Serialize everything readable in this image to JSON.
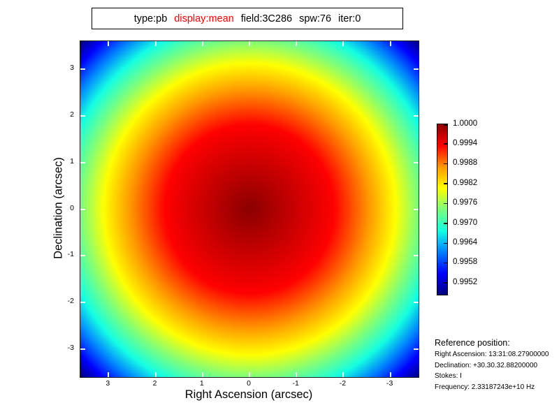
{
  "title": {
    "parts": [
      {
        "text": "type:pb",
        "color": "#000000"
      },
      {
        "text": "display:mean",
        "color": "#ff0000"
      },
      {
        "text": "field:3C286",
        "color": "#000000"
      },
      {
        "text": "spw:76",
        "color": "#000000"
      },
      {
        "text": "iter:0",
        "color": "#000000"
      }
    ]
  },
  "axes": {
    "x": {
      "label": "Right Ascension (arcsec)",
      "ticks": [
        3,
        2,
        1,
        0,
        -1,
        -2,
        -3
      ],
      "min": -3.6,
      "max": 3.6
    },
    "y": {
      "label": "Declination (arcsec)",
      "ticks": [
        3,
        2,
        1,
        0,
        -1,
        -2,
        -3
      ],
      "min": -3.6,
      "max": 3.6
    }
  },
  "colorbar": {
    "colormap": "jet",
    "vmax": 1.0,
    "vmin": 0.99485,
    "tick_labels": [
      "1.0000",
      "0.9994",
      "0.9988",
      "0.9982",
      "0.9976",
      "0.9970",
      "0.9964",
      "0.9958",
      "0.9952"
    ],
    "tick_values": [
      1.0,
      0.9994,
      0.9988,
      0.9982,
      0.9976,
      0.997,
      0.9964,
      0.9958,
      0.9952
    ],
    "stops": [
      {
        "j": 1.0,
        "color": "#8b0000"
      },
      {
        "j": 0.875,
        "color": "#ff0000"
      },
      {
        "j": 0.75,
        "color": "#ff9700"
      },
      {
        "j": 0.625,
        "color": "#ffff00"
      },
      {
        "j": 0.5,
        "color": "#7cff7c"
      },
      {
        "j": 0.375,
        "color": "#14ffe2"
      },
      {
        "j": 0.25,
        "color": "#0080ff"
      },
      {
        "j": 0.125,
        "color": "#0000ff"
      },
      {
        "j": 0.0,
        "color": "#000080"
      }
    ]
  },
  "reference": {
    "heading": "Reference position:",
    "lines": [
      "Right Ascension: 13:31:08.27900000",
      "Declination: +30.30.32.88200000",
      "Stokes: I",
      "Frequency: 2.33187243e+10 Hz"
    ]
  },
  "chart_data": {
    "type": "heatmap",
    "title": "type:pb display:mean field:3C286 spw:76 iter:0",
    "xlabel": "Right Ascension (arcsec)",
    "ylabel": "Declination (arcsec)",
    "x_ticks": [
      3,
      2,
      1,
      0,
      -1,
      -2,
      -3
    ],
    "y_ticks": [
      3,
      2,
      1,
      0,
      -1,
      -2,
      -3
    ],
    "xlim": [
      3.6,
      -3.6
    ],
    "ylim": [
      -3.6,
      3.6
    ],
    "grid": false,
    "colormap": "jet",
    "value_range": [
      0.99485,
      1.0
    ],
    "colorbar_tick_values": [
      1.0,
      0.9994,
      0.9988,
      0.9982,
      0.9976,
      0.997,
      0.9964,
      0.9958,
      0.9952
    ],
    "pattern": "radially symmetric primary-beam image: value ~ 1 - 1.97e-4 * r^2 (r in arcsec); peak 1.0000 at (0,0), ~0.99745 at mid-edges, ~0.9949 at field corners",
    "legend_position": "colorbar-right"
  }
}
